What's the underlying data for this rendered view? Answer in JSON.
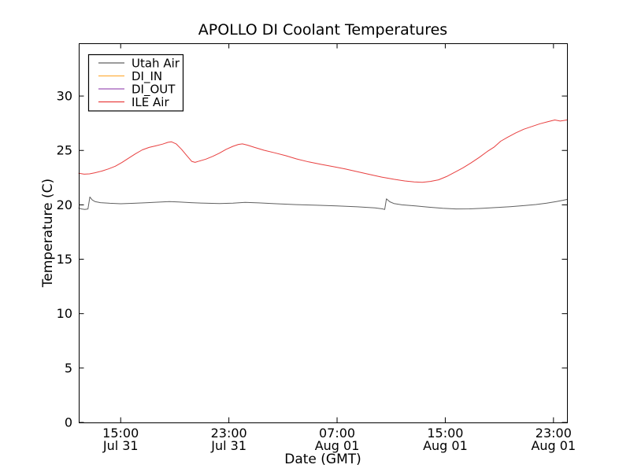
{
  "figure": {
    "background": "#ffffff",
    "axis_color": "#000000"
  },
  "chart_data": {
    "type": "line",
    "title": "APOLLO DI Coolant Temperatures",
    "xlabel": "Date (GMT)",
    "ylabel": "Temperature (C)",
    "x_unit": "hours since Jul 31 00:00 GMT",
    "xlim_hours": [
      11.9,
      48.0
    ],
    "ylim": [
      0,
      34.85
    ],
    "yticks": [
      0,
      5,
      10,
      15,
      20,
      25,
      30
    ],
    "xticks": [
      {
        "hour": 15,
        "time": "15:00",
        "date": "Jul 31"
      },
      {
        "hour": 23,
        "time": "23:00",
        "date": "Jul 31"
      },
      {
        "hour": 31,
        "time": "07:00",
        "date": "Aug 01"
      },
      {
        "hour": 39,
        "time": "15:00",
        "date": "Aug 01"
      },
      {
        "hour": 47,
        "time": "23:00",
        "date": "Aug 01"
      }
    ],
    "grid": false,
    "legend_position": "upper-left",
    "series": [
      {
        "name": "Utah Air",
        "color": "#606060",
        "points": [
          [
            11.9,
            19.7
          ],
          [
            12.1,
            19.62
          ],
          [
            12.35,
            19.57
          ],
          [
            12.58,
            19.62
          ],
          [
            12.72,
            20.72
          ],
          [
            12.9,
            20.45
          ],
          [
            13.1,
            20.3
          ],
          [
            13.5,
            20.2
          ],
          [
            14.2,
            20.14
          ],
          [
            15,
            20.1
          ],
          [
            16,
            20.14
          ],
          [
            17,
            20.2
          ],
          [
            18,
            20.27
          ],
          [
            18.6,
            20.3
          ],
          [
            19.3,
            20.27
          ],
          [
            20.2,
            20.2
          ],
          [
            21.2,
            20.15
          ],
          [
            22.3,
            20.12
          ],
          [
            23.3,
            20.16
          ],
          [
            24.2,
            20.22
          ],
          [
            25.2,
            20.18
          ],
          [
            26.5,
            20.1
          ],
          [
            28,
            20.02
          ],
          [
            29.5,
            19.96
          ],
          [
            31,
            19.9
          ],
          [
            32.5,
            19.82
          ],
          [
            33.8,
            19.72
          ],
          [
            34.35,
            19.63
          ],
          [
            34.52,
            19.57
          ],
          [
            34.65,
            20.55
          ],
          [
            34.9,
            20.28
          ],
          [
            35.2,
            20.12
          ],
          [
            35.8,
            20.0
          ],
          [
            36.8,
            19.9
          ],
          [
            37.8,
            19.78
          ],
          [
            38.8,
            19.68
          ],
          [
            39.8,
            19.62
          ],
          [
            40.8,
            19.63
          ],
          [
            41.8,
            19.68
          ],
          [
            42.8,
            19.75
          ],
          [
            43.8,
            19.83
          ],
          [
            44.8,
            19.93
          ],
          [
            45.7,
            20.03
          ],
          [
            46.5,
            20.15
          ],
          [
            47.2,
            20.3
          ],
          [
            47.7,
            20.42
          ],
          [
            48,
            20.5
          ]
        ]
      },
      {
        "name": "DI_IN",
        "color": "#ffb041",
        "points": []
      },
      {
        "name": "DI_OUT",
        "color": "#9d56b8",
        "points": []
      },
      {
        "name": "ILE Air",
        "color": "#e84040",
        "points": [
          [
            11.9,
            22.9
          ],
          [
            12.3,
            22.82
          ],
          [
            12.7,
            22.85
          ],
          [
            13.1,
            22.95
          ],
          [
            13.6,
            23.1
          ],
          [
            14.1,
            23.3
          ],
          [
            14.6,
            23.55
          ],
          [
            15.1,
            23.9
          ],
          [
            15.6,
            24.3
          ],
          [
            16.1,
            24.7
          ],
          [
            16.6,
            25.05
          ],
          [
            17.1,
            25.28
          ],
          [
            17.6,
            25.42
          ],
          [
            18.1,
            25.58
          ],
          [
            18.5,
            25.75
          ],
          [
            18.75,
            25.8
          ],
          [
            19.1,
            25.6
          ],
          [
            19.5,
            25.1
          ],
          [
            19.9,
            24.5
          ],
          [
            20.25,
            24.0
          ],
          [
            20.5,
            23.9
          ],
          [
            20.8,
            24.02
          ],
          [
            21.3,
            24.2
          ],
          [
            21.8,
            24.45
          ],
          [
            22.3,
            24.75
          ],
          [
            22.8,
            25.1
          ],
          [
            23.3,
            25.38
          ],
          [
            23.7,
            25.55
          ],
          [
            24,
            25.6
          ],
          [
            24.4,
            25.48
          ],
          [
            24.9,
            25.28
          ],
          [
            25.6,
            25.02
          ],
          [
            26.4,
            24.78
          ],
          [
            27.2,
            24.52
          ],
          [
            28,
            24.22
          ],
          [
            28.9,
            23.95
          ],
          [
            29.8,
            23.72
          ],
          [
            30.7,
            23.52
          ],
          [
            31.6,
            23.3
          ],
          [
            32.5,
            23.05
          ],
          [
            33.4,
            22.8
          ],
          [
            34.3,
            22.55
          ],
          [
            35.2,
            22.35
          ],
          [
            36,
            22.2
          ],
          [
            36.7,
            22.1
          ],
          [
            37.3,
            22.07
          ],
          [
            37.9,
            22.15
          ],
          [
            38.5,
            22.3
          ],
          [
            39.1,
            22.6
          ],
          [
            39.7,
            23.0
          ],
          [
            40.3,
            23.4
          ],
          [
            40.9,
            23.85
          ],
          [
            41.5,
            24.35
          ],
          [
            42.1,
            24.9
          ],
          [
            42.6,
            25.3
          ],
          [
            43.1,
            25.85
          ],
          [
            43.6,
            26.2
          ],
          [
            44.2,
            26.6
          ],
          [
            44.8,
            26.95
          ],
          [
            45.4,
            27.2
          ],
          [
            46,
            27.45
          ],
          [
            46.6,
            27.65
          ],
          [
            47.1,
            27.8
          ],
          [
            47.5,
            27.7
          ],
          [
            48,
            27.8
          ]
        ]
      }
    ]
  }
}
